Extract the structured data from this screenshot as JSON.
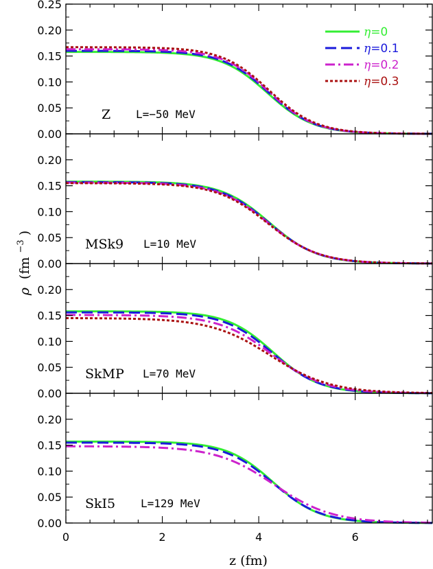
{
  "chart_data": {
    "type": "line",
    "xlabel": "z (fm)",
    "ylabel_symbol": "ρ",
    "ylabel_unit_base": "(fm",
    "ylabel_unit_exp": "−3",
    "ylabel_unit_close": ")",
    "xlim": [
      0,
      7.6
    ],
    "ylim": [
      0,
      0.25
    ],
    "x_ticks": [
      "0",
      "2",
      "4",
      "6"
    ],
    "y_ticks": [
      "0.00",
      "0.05",
      "0.10",
      "0.15",
      "0.20",
      "0.25"
    ],
    "legend": {
      "position": "top-right",
      "entries": [
        {
          "prefix": "η",
          "suffix": "=0",
          "color": "#33ee33",
          "dash": "solid"
        },
        {
          "prefix": "η",
          "suffix": "=0.1",
          "color": "#1a1adb",
          "dash": "long-dash"
        },
        {
          "prefix": "η",
          "suffix": "=0.2",
          "color": "#cc22cc",
          "dash": "dash-dot"
        },
        {
          "prefix": "η",
          "suffix": "=0.3",
          "color": "#aa1111",
          "dash": "dotted"
        }
      ]
    },
    "panels": [
      {
        "name": "Z",
        "L_label": "L=−50 MeV",
        "series": [
          {
            "eta": 0,
            "rho0": 0.158,
            "R": 4.18,
            "a": 0.48
          },
          {
            "eta": 0.1,
            "rho0": 0.16,
            "R": 4.2,
            "a": 0.48
          },
          {
            "eta": 0.2,
            "rho0": 0.163,
            "R": 4.21,
            "a": 0.48
          },
          {
            "eta": 0.3,
            "rho0": 0.167,
            "R": 4.22,
            "a": 0.49
          }
        ]
      },
      {
        "name": "MSk9",
        "L_label": "L=10 MeV",
        "series": [
          {
            "eta": 0,
            "rho0": 0.158,
            "R": 4.22,
            "a": 0.5
          },
          {
            "eta": 0.1,
            "rho0": 0.157,
            "R": 4.21,
            "a": 0.51
          },
          {
            "eta": 0.2,
            "rho0": 0.156,
            "R": 4.2,
            "a": 0.52
          },
          {
            "eta": 0.3,
            "rho0": 0.155,
            "R": 4.19,
            "a": 0.53
          }
        ]
      },
      {
        "name": "SkMP",
        "L_label": "L=70 MeV",
        "series": [
          {
            "eta": 0,
            "rho0": 0.158,
            "R": 4.3,
            "a": 0.48
          },
          {
            "eta": 0.1,
            "rho0": 0.156,
            "R": 4.28,
            "a": 0.5
          },
          {
            "eta": 0.2,
            "rho0": 0.151,
            "R": 4.27,
            "a": 0.55
          },
          {
            "eta": 0.3,
            "rho0": 0.145,
            "R": 4.25,
            "a": 0.62
          }
        ]
      },
      {
        "name": "SkI5",
        "L_label": "L=129 MeV",
        "series": [
          {
            "eta": 0,
            "rho0": 0.157,
            "R": 4.3,
            "a": 0.48
          },
          {
            "eta": 0.1,
            "rho0": 0.155,
            "R": 4.29,
            "a": 0.5
          },
          {
            "eta": 0.2,
            "rho0": 0.148,
            "R": 4.32,
            "a": 0.6
          }
        ]
      }
    ]
  }
}
